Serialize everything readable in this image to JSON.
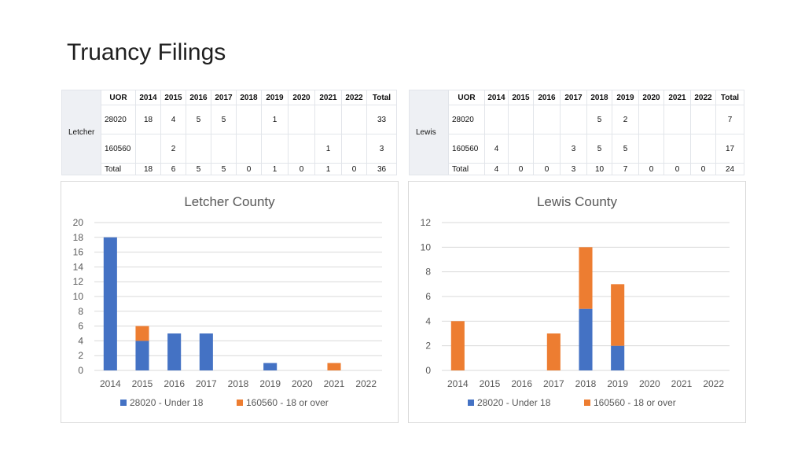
{
  "slide": {
    "title": "Truancy Filings"
  },
  "tables": [
    {
      "id": "letcher",
      "county_label": "Letcher",
      "headers": [
        "UOR",
        "2014",
        "2015",
        "2016",
        "2017",
        "2018",
        "2019",
        "2020",
        "2021",
        "2022",
        "Total"
      ],
      "rows": [
        {
          "uor": "28020",
          "cells": [
            "18",
            "4",
            "5",
            "5",
            "",
            "1",
            "",
            "",
            "",
            "33"
          ]
        },
        {
          "uor": "160560",
          "cells": [
            "",
            "2",
            "",
            "",
            "",
            "",
            "",
            "1",
            "",
            "3"
          ]
        }
      ],
      "total_row": {
        "label": "Total",
        "cells": [
          "18",
          "6",
          "5",
          "5",
          "0",
          "1",
          "0",
          "1",
          "0",
          "36"
        ]
      }
    },
    {
      "id": "lewis",
      "county_label": "Lewis",
      "headers": [
        "UOR",
        "2014",
        "2015",
        "2016",
        "2017",
        "2018",
        "2019",
        "2020",
        "2021",
        "2022",
        "Total"
      ],
      "rows": [
        {
          "uor": "28020",
          "cells": [
            "",
            "",
            "",
            "",
            "5",
            "2",
            "",
            "",
            "",
            "7"
          ]
        },
        {
          "uor": "160560",
          "cells": [
            "4",
            "",
            "",
            "3",
            "5",
            "5",
            "",
            "",
            "",
            "17"
          ]
        }
      ],
      "total_row": {
        "label": "Total",
        "cells": [
          "4",
          "0",
          "0",
          "3",
          "10",
          "7",
          "0",
          "0",
          "0",
          "24"
        ]
      }
    }
  ],
  "chart_data": [
    {
      "type": "bar",
      "stacked": true,
      "title": "Letcher County",
      "categories": [
        "2014",
        "2015",
        "2016",
        "2017",
        "2018",
        "2019",
        "2020",
        "2021",
        "2022"
      ],
      "series": [
        {
          "name": "28020 - Under 18",
          "color": "#4472c4",
          "values": [
            18,
            4,
            5,
            5,
            0,
            1,
            0,
            0,
            0
          ]
        },
        {
          "name": "160560 - 18 or over",
          "color": "#ed7d31",
          "values": [
            0,
            2,
            0,
            0,
            0,
            0,
            0,
            1,
            0
          ]
        }
      ],
      "ylim": [
        0,
        20
      ],
      "yticks": [
        "0",
        "2",
        "4",
        "6",
        "8",
        "10",
        "12",
        "14",
        "16",
        "18",
        "20"
      ],
      "grid": true,
      "legend": "bottom"
    },
    {
      "type": "bar",
      "stacked": true,
      "title": "Lewis County",
      "categories": [
        "2014",
        "2015",
        "2016",
        "2017",
        "2018",
        "2019",
        "2020",
        "2021",
        "2022"
      ],
      "series": [
        {
          "name": "28020 - Under 18",
          "color": "#4472c4",
          "values": [
            0,
            0,
            0,
            0,
            5,
            2,
            0,
            0,
            0
          ]
        },
        {
          "name": "160560 - 18 or over",
          "color": "#ed7d31",
          "values": [
            4,
            0,
            0,
            3,
            5,
            5,
            0,
            0,
            0
          ]
        }
      ],
      "ylim": [
        0,
        12
      ],
      "yticks": [
        "0",
        "2",
        "4",
        "6",
        "8",
        "10",
        "12"
      ],
      "grid": true,
      "legend": "bottom"
    }
  ]
}
